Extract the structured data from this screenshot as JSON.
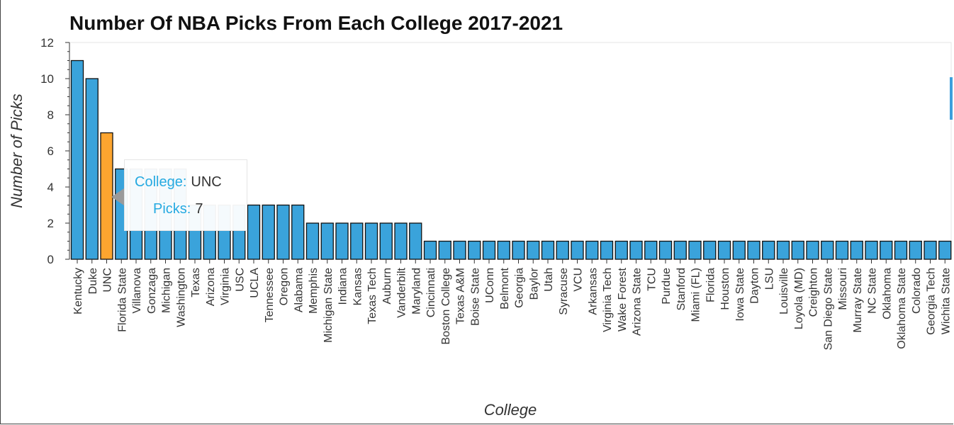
{
  "chart_data": {
    "type": "bar",
    "title": "Number Of NBA Picks From Each College 2017-2021",
    "xlabel": "College",
    "ylabel": "Number of Picks",
    "ylim": [
      0,
      12
    ],
    "yticks": [
      0,
      2,
      4,
      6,
      8,
      10,
      12
    ],
    "grid": false,
    "categories": [
      "Kentucky",
      "Duke",
      "UNC",
      "Florida State",
      "Villanova",
      "Gonzaga",
      "Michigan",
      "Washington",
      "Texas",
      "Arizona",
      "Virginia",
      "USC",
      "UCLA",
      "Tennessee",
      "Oregon",
      "Alabama",
      "Memphis",
      "Michigan State",
      "Indiana",
      "Kansas",
      "Texas Tech",
      "Auburn",
      "Vanderbilt",
      "Maryland",
      "Cincinnati",
      "Boston College",
      "Texas A&M",
      "Boise State",
      "UConn",
      "Belmont",
      "Georgia",
      "Baylor",
      "Utah",
      "Syracuse",
      "VCU",
      "Arkansas",
      "Virginia Tech",
      "Wake Forest",
      "Arizona State",
      "TCU",
      "Purdue",
      "Stanford",
      "Miami (FL)",
      "Florida",
      "Houston",
      "Iowa State",
      "Dayton",
      "LSU",
      "Louisville",
      "Loyola (MD)",
      "Creighton",
      "San Diego State",
      "Missouri",
      "Murray State",
      "NC State",
      "Oklahoma",
      "Oklahoma State",
      "Colorado",
      "Georgia Tech",
      "Wichita State"
    ],
    "values": [
      11,
      10,
      7,
      5,
      5,
      5,
      5,
      5,
      3,
      3,
      3,
      3,
      3,
      3,
      3,
      3,
      2,
      2,
      2,
      2,
      2,
      2,
      2,
      2,
      1,
      1,
      1,
      1,
      1,
      1,
      1,
      1,
      1,
      1,
      1,
      1,
      1,
      1,
      1,
      1,
      1,
      1,
      1,
      1,
      1,
      1,
      1,
      1,
      1,
      1,
      1,
      1,
      1,
      1,
      1,
      1,
      1,
      1,
      1,
      1
    ],
    "bar_color": "#3aa3db",
    "highlight_color": "#fda52f",
    "highlight_index": 2
  },
  "tooltip": {
    "college_key": "College:",
    "college_value": "UNC",
    "picks_key": "Picks:",
    "picks_value": "7"
  }
}
